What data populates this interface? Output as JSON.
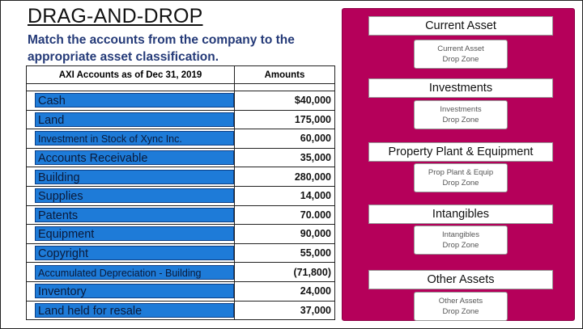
{
  "header": {
    "title": "DRAG-AND-DROP",
    "subtitle": "Match the accounts from the company to the appropriate asset classification."
  },
  "table": {
    "col1_header": "AXI Accounts as of Dec 31, 2019",
    "col2_header": "Amounts",
    "rows": [
      {
        "account": "Cash",
        "amount": "$40,000"
      },
      {
        "account": "Land",
        "amount": "175,000"
      },
      {
        "account": "Investment in Stock of Xync Inc.",
        "amount": "60,000"
      },
      {
        "account": "Accounts Receivable",
        "amount": "35,000"
      },
      {
        "account": "Building",
        "amount": "280,000"
      },
      {
        "account": "Supplies",
        "amount": "14,000"
      },
      {
        "account": "Patents",
        "amount": "70.000"
      },
      {
        "account": "Equipment",
        "amount": "90,000"
      },
      {
        "account": "Copyright",
        "amount": "55,000"
      },
      {
        "account": "Accumulated Depreciation - Building",
        "amount": "(71,800)"
      },
      {
        "account": "Inventory",
        "amount": "24,000"
      },
      {
        "account": "Land held for resale",
        "amount": "37,000"
      }
    ]
  },
  "categories": [
    {
      "title": "Current Asset",
      "drop_line1": "Current Asset",
      "drop_line2": "Drop Zone"
    },
    {
      "title": "Investments",
      "drop_line1": "Investments",
      "drop_line2": "Drop Zone"
    },
    {
      "title": "Property Plant & Equipment",
      "drop_line1": "Prop Plant & Equip",
      "drop_line2": "Drop Zone"
    },
    {
      "title": "Intangibles",
      "drop_line1": "Intangibles",
      "drop_line2": "Drop Zone"
    },
    {
      "title": "Other Assets",
      "drop_line1": "Other Assets",
      "drop_line2": "Drop Zone"
    }
  ],
  "colors": {
    "panel": "#b5005a",
    "chip": "#1e7bd8",
    "subtitle": "#243a78"
  }
}
